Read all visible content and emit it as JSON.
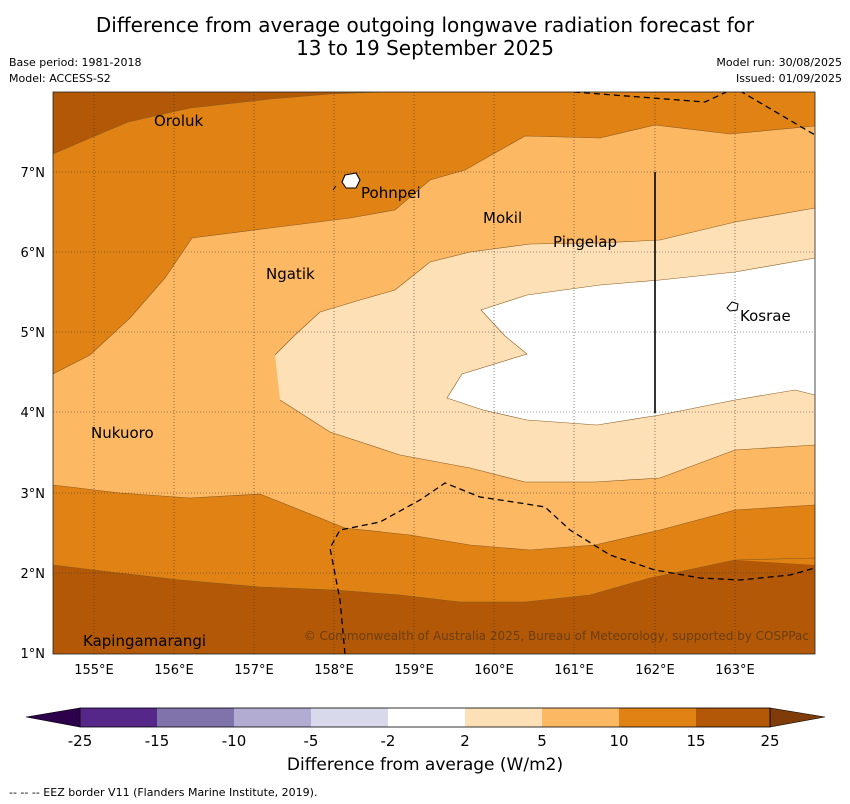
{
  "title_line1": "Difference from average outgoing longwave radiation forecast for",
  "title_line2": "13 to 19 September 2025",
  "base_period": "Base period: 1981-2018",
  "model": "Model: ACCESS-S2",
  "model_run": "Model run: 30/08/2025",
  "issued": "Issued: 01/09/2025",
  "copyright": "© Commonwealth of Australia 2025, Bureau of Meteorology, supported by COSPPac",
  "lat_labels": [
    "7°N",
    "6°N",
    "5°N",
    "4°N",
    "3°N",
    "2°N",
    "1°N"
  ],
  "lon_labels": [
    "155°E",
    "156°E",
    "157°E",
    "158°E",
    "159°E",
    "160°E",
    "161°E",
    "162°E",
    "163°E"
  ],
  "places": [
    "Oroluk",
    "Pohnpei",
    "Mokil",
    "Pingelap",
    "Ngatik",
    "Kosrae",
    "Nukuoro",
    "Kapingamarangi"
  ],
  "colorbar": {
    "title": "Difference from average (W/m2)",
    "ticks": [
      "-25",
      "-15",
      "-10",
      "-5",
      "-2",
      "2",
      "5",
      "10",
      "15",
      "25"
    ],
    "colors": [
      "#542788",
      "#8073ac",
      "#b2abd2",
      "#d8daeb",
      "#ffffff",
      "#fee0b6",
      "#fdb863",
      "#e08214",
      "#b35806"
    ],
    "under_color": "#2d004b",
    "over_color": "#7f3b08"
  },
  "eez_note": "--  --  -- EEZ border V11 (Flanders Marine Institute, 2019)."
}
